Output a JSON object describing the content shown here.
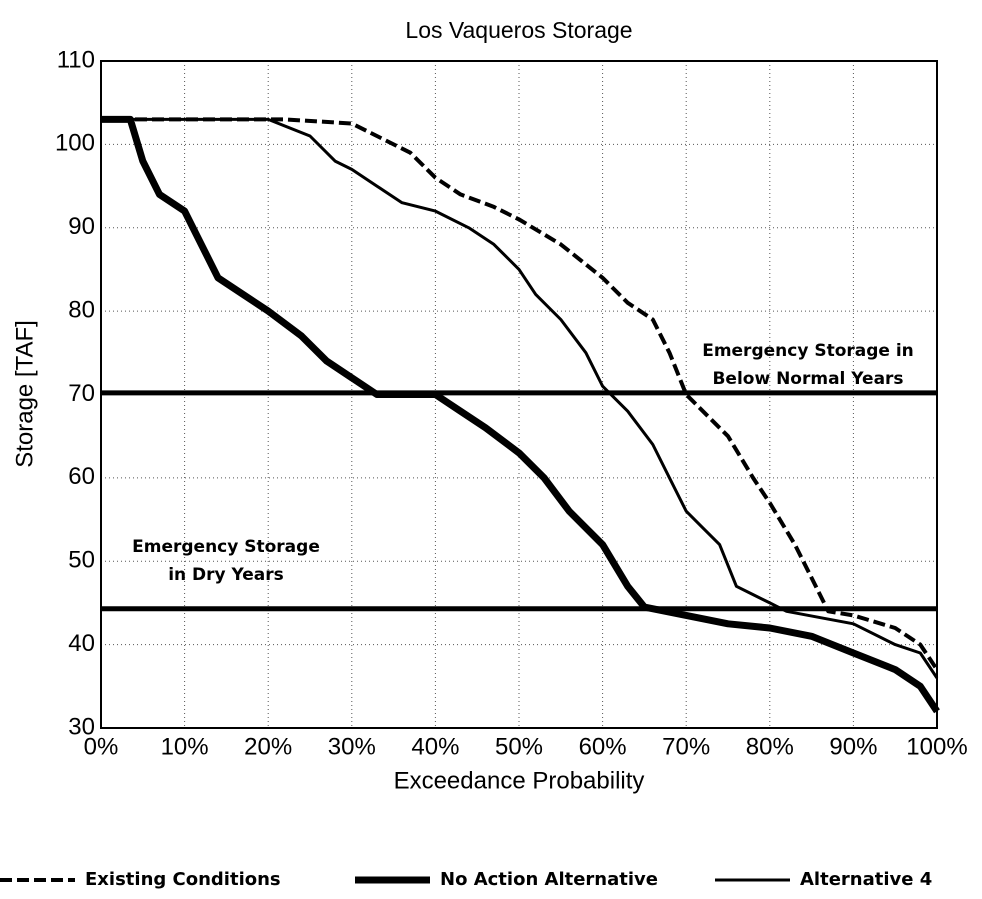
{
  "chart_data": {
    "type": "line",
    "title": "Los Vaqueros Storage",
    "xlabel": "Exceedance Probability",
    "ylabel": "Storage [TAF]",
    "xlim": [
      0,
      100
    ],
    "ylim": [
      30,
      110
    ],
    "xticks": [
      {
        "value": 0,
        "label": "0%"
      },
      {
        "value": 10,
        "label": "10%"
      },
      {
        "value": 20,
        "label": "20%"
      },
      {
        "value": 30,
        "label": "30%"
      },
      {
        "value": 40,
        "label": "40%"
      },
      {
        "value": 50,
        "label": "50%"
      },
      {
        "value": 60,
        "label": "60%"
      },
      {
        "value": 70,
        "label": "70%"
      },
      {
        "value": 80,
        "label": "80%"
      },
      {
        "value": 90,
        "label": "90%"
      },
      {
        "value": 100,
        "label": "100%"
      }
    ],
    "yticks": [
      30,
      40,
      50,
      60,
      70,
      80,
      90,
      100,
      110
    ],
    "grid": true,
    "legend": "bottom",
    "series": [
      {
        "name": "Existing Conditions",
        "color": "#000000",
        "style": "dashed",
        "x": [
          0,
          22,
          30,
          33,
          37,
          40,
          43,
          47,
          50,
          55,
          60,
          63,
          66,
          68,
          70,
          72,
          75,
          78,
          80,
          83,
          85,
          87,
          90,
          95,
          98,
          100
        ],
        "values": [
          103,
          103,
          102.5,
          101,
          99,
          96,
          94,
          92.5,
          91,
          88,
          84,
          81,
          79,
          75,
          70,
          68,
          65,
          60,
          57,
          52,
          48,
          44,
          43.5,
          42,
          40,
          37
        ]
      },
      {
        "name": "No Action Alternative",
        "color": "#000000",
        "style": "thick",
        "x": [
          0,
          3.5,
          5,
          7,
          10,
          12,
          14,
          17,
          20,
          24,
          27,
          30,
          33,
          40,
          43,
          46,
          50,
          53,
          56,
          60,
          63,
          65,
          70,
          75,
          80,
          85,
          90,
          95,
          98,
          100
        ],
        "values": [
          103,
          103,
          98,
          94,
          92,
          88,
          84,
          82,
          80,
          77,
          74,
          72,
          70,
          70,
          68,
          66,
          63,
          60,
          56,
          52,
          47,
          44.5,
          43.5,
          42.5,
          42,
          41,
          39,
          37,
          35,
          32
        ]
      },
      {
        "name": "Alternative 4",
        "color": "#000000",
        "style": "thin",
        "x": [
          0,
          20,
          25,
          28,
          30,
          33,
          36,
          40,
          44,
          47,
          50,
          52,
          55,
          58,
          60,
          63,
          66,
          68,
          70,
          72,
          74,
          76,
          78,
          80,
          82,
          90,
          95,
          98,
          100
        ],
        "values": [
          103,
          103,
          101,
          98,
          97,
          95,
          93,
          92,
          90,
          88,
          85,
          82,
          79,
          75,
          71,
          68,
          64,
          60,
          56,
          54,
          52,
          47,
          46,
          45,
          44,
          42.5,
          40,
          39,
          36
        ]
      }
    ],
    "hlines": [
      70.2,
      44.3
    ],
    "annotations": [
      {
        "lines": [
          "Emergency Storage in",
          "Below Normal Years"
        ]
      },
      {
        "lines": [
          "Emergency Storage",
          "in Dry Years"
        ]
      }
    ]
  }
}
